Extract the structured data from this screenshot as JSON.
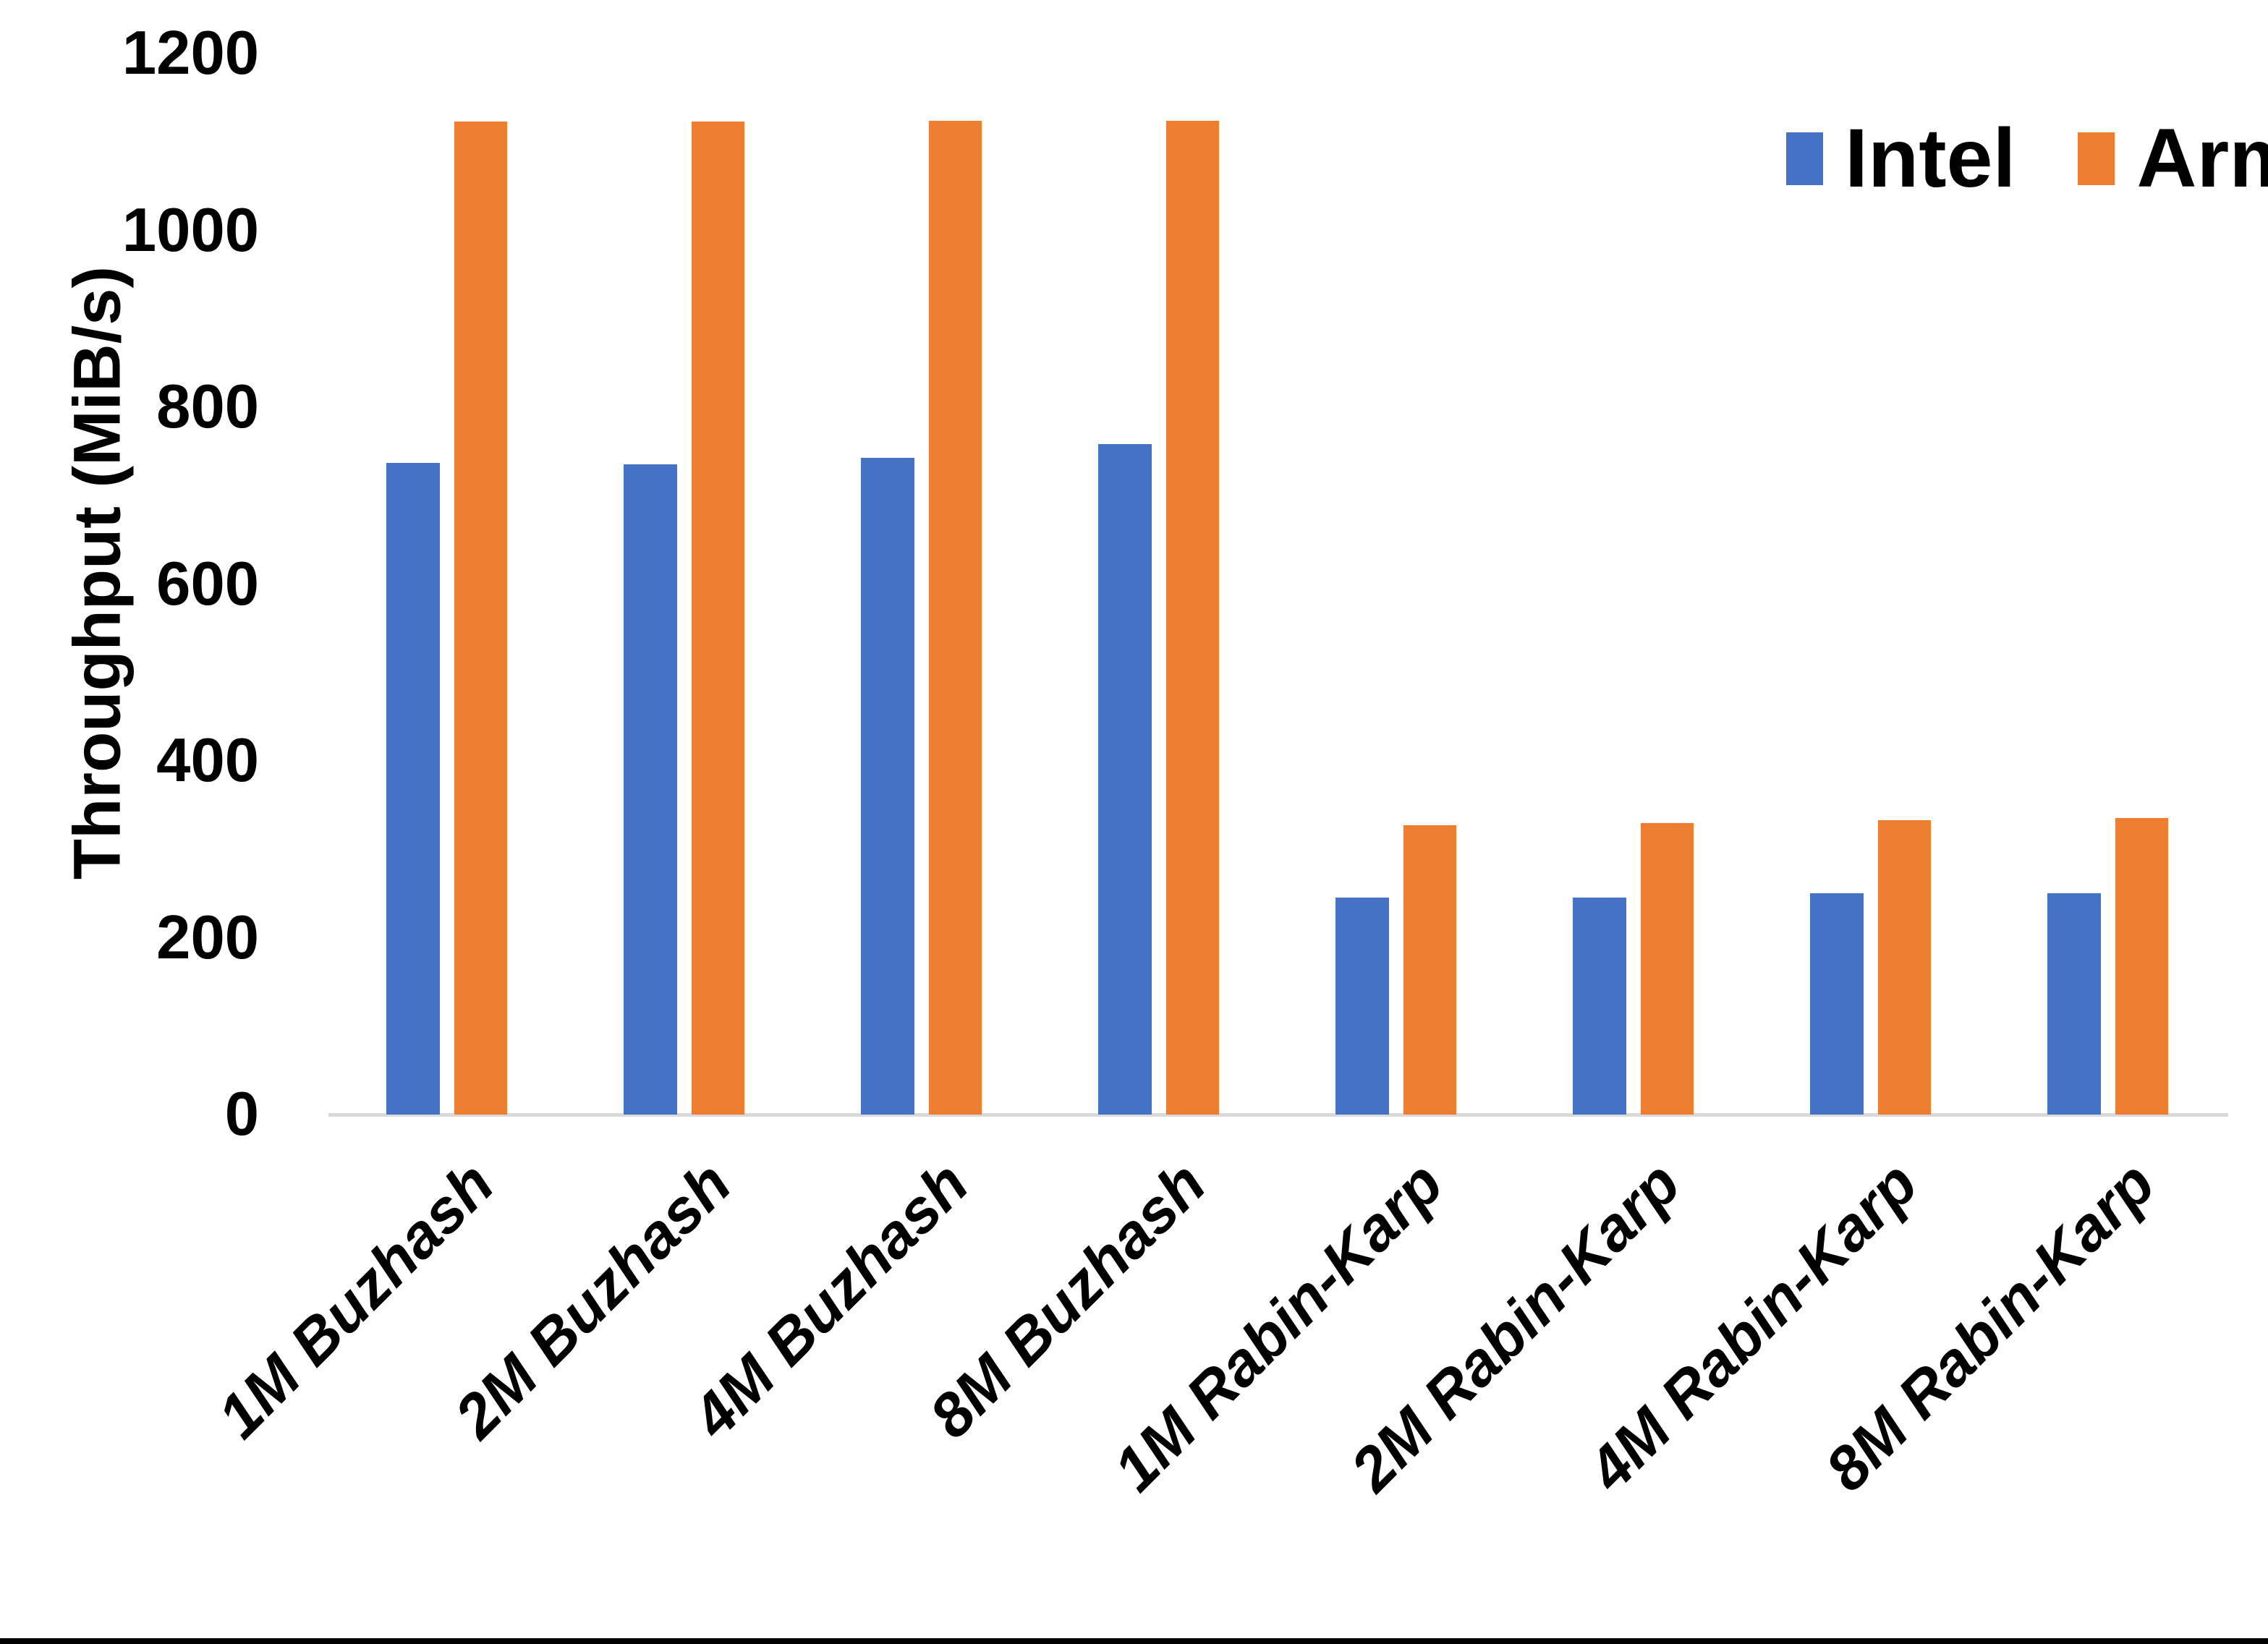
{
  "chart_data": {
    "type": "bar",
    "title": "",
    "xlabel": "",
    "ylabel": "Throughput (MiB/s)",
    "ylim": [
      0,
      1200
    ],
    "yticks": [
      0,
      200,
      400,
      600,
      800,
      1000,
      1200
    ],
    "grid": false,
    "legend_position": "top-right",
    "categories": [
      "1M Buzhash",
      "2M Buzhash",
      "4M Buzhash",
      "8M Buzhash",
      "1M Rabin-Karp",
      "2M Rabin-Karp",
      "4M Rabin-Karp",
      "8M Rabin-Karp"
    ],
    "series": [
      {
        "name": "Intel",
        "color": "#4472C4",
        "values": [
          737,
          735,
          743,
          758,
          245,
          245,
          250,
          250
        ]
      },
      {
        "name": "Arm",
        "color": "#ED7D31",
        "values": [
          1123,
          1123,
          1124,
          1124,
          327,
          330,
          333,
          335
        ]
      }
    ]
  },
  "colors": {
    "background": "#FFFFFF",
    "axis_line": "#D9D9D9",
    "text": "#000000",
    "bottom_border": "#000000"
  }
}
